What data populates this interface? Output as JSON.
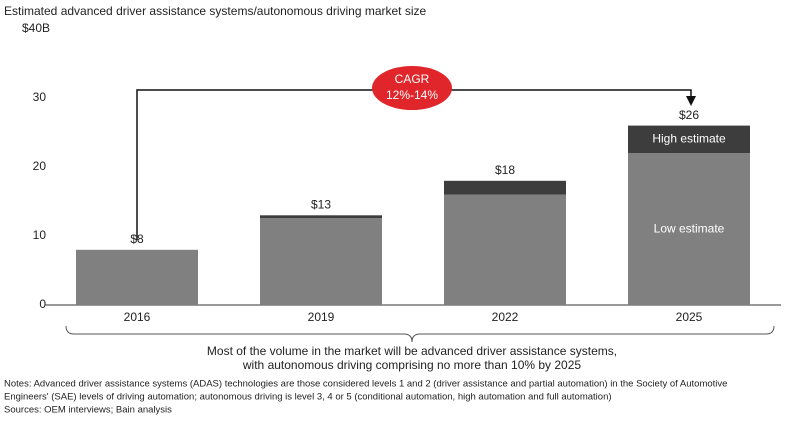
{
  "chart_data": {
    "type": "stacked-bar",
    "title": "Estimated advanced driver assistance systems/autonomous driving market size",
    "categories": [
      "2016",
      "2019",
      "2022",
      "2025"
    ],
    "series": [
      {
        "name": "Low estimate",
        "color": "#808080",
        "values": [
          8,
          12.6,
          16,
          22
        ]
      },
      {
        "name": "High estimate",
        "color": "#3d3d3d",
        "values": [
          0,
          0.4,
          2,
          4
        ]
      }
    ],
    "totals": {
      "values": [
        8,
        13,
        18,
        26
      ],
      "value_labels": [
        "$8",
        "$13",
        "$18",
        "$26"
      ]
    },
    "ylim": [
      0,
      40
    ],
    "yticks": [
      0,
      10,
      20,
      30,
      {
        "value": 40,
        "label": "$40B"
      }
    ],
    "annotation": {
      "title": "CAGR",
      "value": "12%-14%"
    },
    "brace_text": [
      "Most of the volume in the market will be advanced driver assistance systems,",
      "with autonomous driving comprising no more than 10% by 2025"
    ],
    "notes": [
      "Notes: Advanced driver assistance systems (ADAS) technologies are those considered levels 1 and 2 (driver assistance and partial automation) in the Society of Automotive",
      "Engineers' (SAE) levels of driving automation; autonomous driving is level 3, 4 or 5 (conditional automation, high automation and full automation)",
      "Sources: OEM interviews; Bain analysis"
    ]
  }
}
